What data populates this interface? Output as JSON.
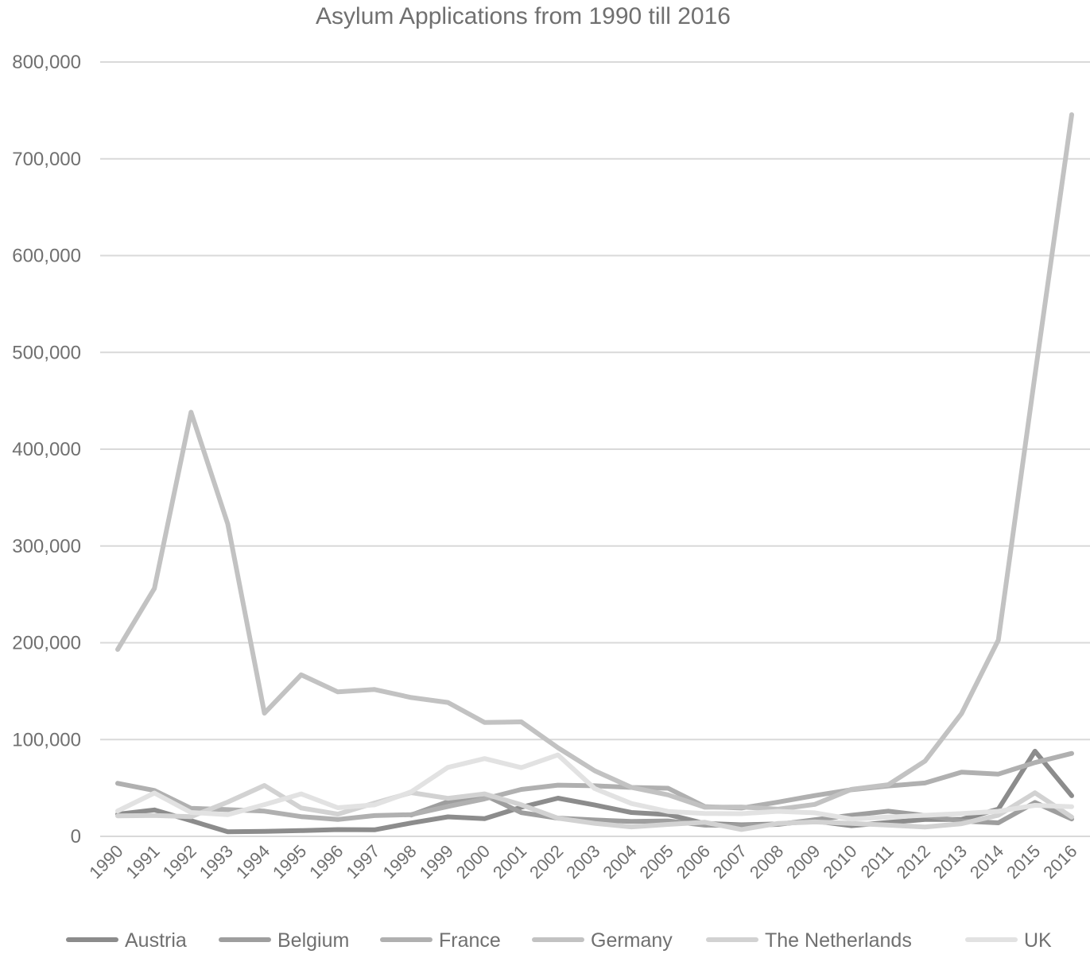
{
  "chart_data": {
    "type": "line",
    "title": "Asylum Applications from 1990 till 2016",
    "xlabel": "",
    "ylabel": "",
    "ylim": [
      0,
      800000
    ],
    "yticks": [
      0,
      100000,
      200000,
      300000,
      400000,
      500000,
      600000,
      700000,
      800000
    ],
    "ytick_labels": [
      "0",
      "100,000",
      "200,000",
      "300,000",
      "400,000",
      "500,000",
      "600,000",
      "700,000",
      "800,000"
    ],
    "categories": [
      "1990",
      "1991",
      "1992",
      "1993",
      "1994",
      "1995",
      "1996",
      "1997",
      "1998",
      "1999",
      "2000",
      "2001",
      "2002",
      "2003",
      "2004",
      "2005",
      "2006",
      "2007",
      "2008",
      "2009",
      "2010",
      "2011",
      "2012",
      "2013",
      "2014",
      "2015",
      "2016"
    ],
    "grid": true,
    "legend_position": "bottom",
    "series": [
      {
        "name": "Austria",
        "color": "#8c8c8c",
        "values": [
          22800,
          27300,
          16200,
          4700,
          5100,
          5900,
          7000,
          6700,
          13800,
          20100,
          18300,
          30100,
          39400,
          32400,
          24600,
          22500,
          13300,
          11900,
          12800,
          15800,
          11000,
          14400,
          17400,
          17500,
          28100,
          88000,
          42000
        ]
      },
      {
        "name": "Belgium",
        "color": "#9e9e9e",
        "values": [
          null,
          null,
          null,
          null,
          null,
          null,
          null,
          null,
          22000,
          35800,
          42700,
          24500,
          18800,
          16900,
          15400,
          15900,
          11600,
          11100,
          12300,
          17200,
          21800,
          26000,
          21500,
          15800,
          14000,
          35000,
          18000
        ]
      },
      {
        "name": "France",
        "color": "#b0b0b0",
        "values": [
          54800,
          47400,
          28900,
          27600,
          26000,
          20400,
          17400,
          21400,
          22400,
          30900,
          38700,
          48500,
          52900,
          52200,
          50500,
          49700,
          30700,
          29200,
          35400,
          42100,
          48100,
          52100,
          55100,
          66300,
          64300,
          76200,
          85700
        ]
      },
      {
        "name": "Germany",
        "color": "#c2c2c2",
        "values": [
          193100,
          256100,
          438200,
          322600,
          127200,
          166900,
          149200,
          151700,
          143400,
          138300,
          117600,
          118300,
          91500,
          67800,
          50600,
          42900,
          30100,
          30300,
          28000,
          33000,
          48600,
          53300,
          77700,
          127000,
          202800,
          476600,
          745600
        ]
      },
      {
        "name": "The Netherlands",
        "color": "#d2d2d2",
        "values": [
          21200,
          21600,
          20300,
          35400,
          52600,
          29300,
          22900,
          34400,
          45200,
          39300,
          43900,
          32600,
          18700,
          13400,
          9800,
          12300,
          14500,
          7100,
          13400,
          14900,
          13300,
          11600,
          9700,
          13100,
          21800,
          44970,
          19980
        ]
      },
      {
        "name": "UK",
        "color": "#e2e2e2",
        "values": [
          26200,
          44800,
          24600,
          22400,
          32800,
          43900,
          29600,
          32500,
          46000,
          71200,
          80300,
          71000,
          84100,
          49400,
          33900,
          25700,
          23600,
          23400,
          25900,
          24300,
          17900,
          19900,
          21800,
          23500,
          25900,
          32000,
          30600
        ]
      }
    ]
  }
}
